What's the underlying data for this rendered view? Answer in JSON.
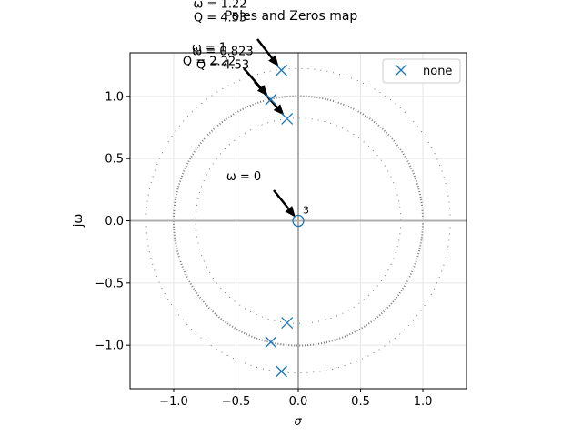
{
  "chart_data": {
    "type": "scatter",
    "title": "Poles and Zeros map",
    "xlabel": "σ",
    "ylabel": "jω",
    "xlim": [
      -1.35,
      1.35
    ],
    "ylim": [
      -1.35,
      1.35
    ],
    "grid": true,
    "legend_position": "top-right",
    "x_ticks": [
      "−1.0",
      "−0.5",
      "0.0",
      "0.5",
      "1.0"
    ],
    "x_tick_values": [
      -1.0,
      -0.5,
      0.0,
      0.5,
      1.0
    ],
    "y_ticks": [
      "−1.0",
      "−0.5",
      "0.0",
      "0.5",
      "1.0"
    ],
    "y_tick_values": [
      -1.0,
      -0.5,
      0.0,
      0.5,
      1.0
    ],
    "series": [
      {
        "name": "none",
        "marker": "x",
        "color": "#1f77b4",
        "points": [
          {
            "x": -0.135,
            "y": 1.21
          },
          {
            "x": -0.22,
            "y": 0.975
          },
          {
            "x": -0.09,
            "y": 0.82
          },
          {
            "x": -0.09,
            "y": -0.82
          },
          {
            "x": -0.22,
            "y": -0.975
          },
          {
            "x": -0.135,
            "y": -1.21
          }
        ]
      }
    ],
    "zeros": [
      {
        "x": 0.0,
        "y": 0.0,
        "multiplicity_label": "3",
        "color": "#1f77b4"
      }
    ],
    "circles": [
      {
        "radius": 1.22,
        "style": "sparse-dotted",
        "color": "#777777"
      },
      {
        "radius": 1.0,
        "style": "dense-dotted",
        "color": "#777777"
      },
      {
        "radius": 0.823,
        "style": "sparse-dotted",
        "color": "#777777"
      }
    ],
    "annotations": [
      {
        "lines": [
          "ω = 1.22",
          "Q = 4.53"
        ],
        "target": {
          "x": -0.135,
          "y": 1.21
        }
      },
      {
        "lines": [
          "ω =   1",
          "Q = 2.22"
        ],
        "target": {
          "x": -0.22,
          "y": 0.975
        }
      },
      {
        "lines": [
          "ω = 0.823",
          "Q = 4.53"
        ],
        "target": {
          "x": -0.09,
          "y": 0.82
        }
      },
      {
        "lines": [
          "ω =   0"
        ],
        "target": {
          "x": 0.0,
          "y": 0.0
        }
      }
    ]
  }
}
